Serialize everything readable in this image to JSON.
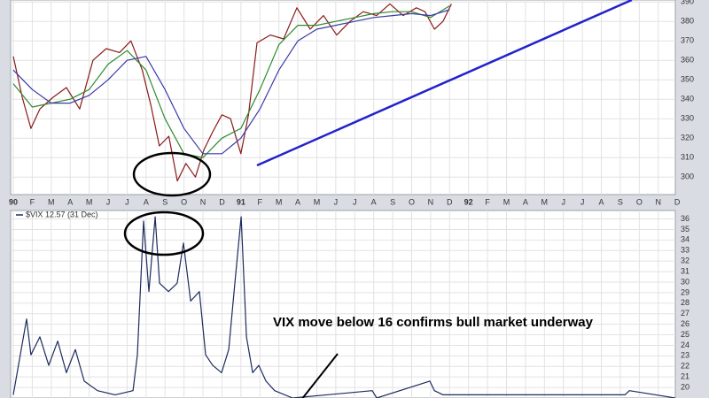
{
  "chart_data": [
    {
      "type": "line",
      "xlim": [
        -0.14,
        34.9
      ],
      "ylim": [
        291,
        391
      ],
      "yticks": [
        300,
        310,
        320,
        330,
        340,
        350,
        360,
        370,
        380,
        390
      ],
      "xticks": [
        {
          "value": 0,
          "label": "90"
        },
        {
          "value": 1,
          "label": "F"
        },
        {
          "value": 2,
          "label": "M"
        },
        {
          "value": 3,
          "label": "A"
        },
        {
          "value": 4,
          "label": "M"
        },
        {
          "value": 5,
          "label": "J"
        },
        {
          "value": 6,
          "label": "J"
        },
        {
          "value": 7,
          "label": "A"
        },
        {
          "value": 8,
          "label": "S"
        },
        {
          "value": 9,
          "label": "O"
        },
        {
          "value": 10,
          "label": "N"
        },
        {
          "value": 11,
          "label": "D"
        },
        {
          "value": 12,
          "label": "91"
        },
        {
          "value": 13,
          "label": "F"
        },
        {
          "value": 14,
          "label": "M"
        },
        {
          "value": 15,
          "label": "A"
        },
        {
          "value": 16,
          "label": "M"
        },
        {
          "value": 17,
          "label": "J"
        },
        {
          "value": 18,
          "label": "J"
        },
        {
          "value": 19,
          "label": "A"
        },
        {
          "value": 20,
          "label": "S"
        },
        {
          "value": 21,
          "label": "O"
        },
        {
          "value": 22,
          "label": "N"
        },
        {
          "value": 23,
          "label": "D"
        },
        {
          "value": 24,
          "label": "92"
        },
        {
          "value": 25,
          "label": "F"
        },
        {
          "value": 26,
          "label": "M"
        },
        {
          "value": 27,
          "label": "A"
        },
        {
          "value": 28,
          "label": "M"
        },
        {
          "value": 29,
          "label": "J"
        },
        {
          "value": 30,
          "label": "J"
        },
        {
          "value": 31,
          "label": "A"
        },
        {
          "value": 32,
          "label": "S"
        },
        {
          "value": 33,
          "label": "O"
        },
        {
          "value": 34,
          "label": "N"
        },
        {
          "value": 35,
          "label": "D"
        }
      ],
      "grid": true,
      "series": [
        {
          "color": "#8a1a1a",
          "x": [
            0,
            0.47,
            0.93,
            1.4,
            2.1,
            2.8,
            3.5,
            4.2,
            4.9,
            5.6,
            6.2,
            6.8,
            7.25,
            7.7,
            8.2,
            8.65,
            9.1,
            9.6,
            10.05,
            10.5,
            11,
            11.45,
            12,
            12.4,
            12.85,
            13.55,
            14.25,
            14.95,
            15.65,
            16.35,
            17.05,
            17.75,
            18.45,
            19.15,
            19.85,
            20.55,
            21.25,
            21.7,
            22.2,
            22.65,
            23.1
          ],
          "values": [
            362,
            341,
            325,
            335,
            341,
            346,
            335,
            360,
            366,
            364,
            370,
            355,
            337,
            316,
            321,
            298,
            307,
            300,
            314,
            323,
            332,
            330,
            312,
            332,
            369,
            373,
            371,
            387,
            376,
            383,
            373,
            380,
            385,
            383,
            389,
            383,
            387,
            385,
            376,
            380,
            389
          ]
        },
        {
          "color": "#2e8b2e",
          "x": [
            0,
            1,
            2,
            3,
            4,
            5,
            6,
            7,
            8,
            9,
            10,
            11,
            12,
            13,
            14,
            15,
            16,
            17,
            18,
            19,
            20,
            21,
            22,
            23
          ],
          "values": [
            348,
            336,
            338,
            340,
            345,
            358,
            365,
            355,
            330,
            312,
            310,
            320,
            325,
            345,
            368,
            378,
            378,
            380,
            382,
            384,
            385,
            385,
            382,
            388
          ]
        },
        {
          "color": "#3a3aa8",
          "x": [
            0,
            1,
            2,
            3,
            4,
            5,
            6,
            7,
            8,
            9,
            10,
            11,
            12,
            13,
            14,
            15,
            16,
            17,
            18,
            19,
            20,
            21,
            22,
            23
          ],
          "values": [
            355,
            345,
            338,
            338,
            342,
            350,
            360,
            362,
            345,
            325,
            312,
            312,
            320,
            335,
            355,
            370,
            376,
            378,
            380,
            382,
            383,
            384,
            383,
            386
          ]
        },
        {
          "color": "#2222cc",
          "width": 2.5,
          "x": [
            12.85,
            32.6
          ],
          "values": [
            306,
            391
          ]
        }
      ]
    },
    {
      "type": "line",
      "xlim": [
        -0.14,
        34.9
      ],
      "ylim": [
        19,
        36.8
      ],
      "yticks": [
        20,
        21,
        22,
        23,
        24,
        25,
        26,
        27,
        28,
        29,
        30,
        31,
        32,
        33,
        34,
        35,
        36
      ],
      "grid": true,
      "legend": "$VIX 12.57 (31 Dec)",
      "annotation": "VIX move below 16 confirms bull market underway",
      "series": [
        {
          "color": "#1c2b5e",
          "x": [
            0,
            0.7,
            0.93,
            1.4,
            1.87,
            2.34,
            2.8,
            3.27,
            3.74,
            4.44,
            5.37,
            6.31,
            6.54,
            6.87,
            7.15,
            7.48,
            7.71,
            8.18,
            8.64,
            8.97,
            9.35,
            9.81,
            10.14,
            10.51,
            10.98,
            11.36,
            11.68,
            12.01,
            12.29,
            12.62,
            12.94,
            13.32,
            13.78,
            14.72,
            18.92,
            19.16,
            21.96,
            22.2,
            22.66,
            32.24,
            32.48,
            34.91
          ],
          "values": [
            19.3,
            26.5,
            23.1,
            24.8,
            22.1,
            24.4,
            21.4,
            23.6,
            20.6,
            19.7,
            19.3,
            19.7,
            23.1,
            35.8,
            29.1,
            36.2,
            29.9,
            29.1,
            29.9,
            33.7,
            28.2,
            29.1,
            23.1,
            22.1,
            21.4,
            23.6,
            29.9,
            36.2,
            24.8,
            21.4,
            22.1,
            20.6,
            19.7,
            19,
            19.7,
            19,
            20.6,
            19.7,
            19.3,
            19.3,
            19.7,
            19
          ]
        }
      ]
    }
  ]
}
